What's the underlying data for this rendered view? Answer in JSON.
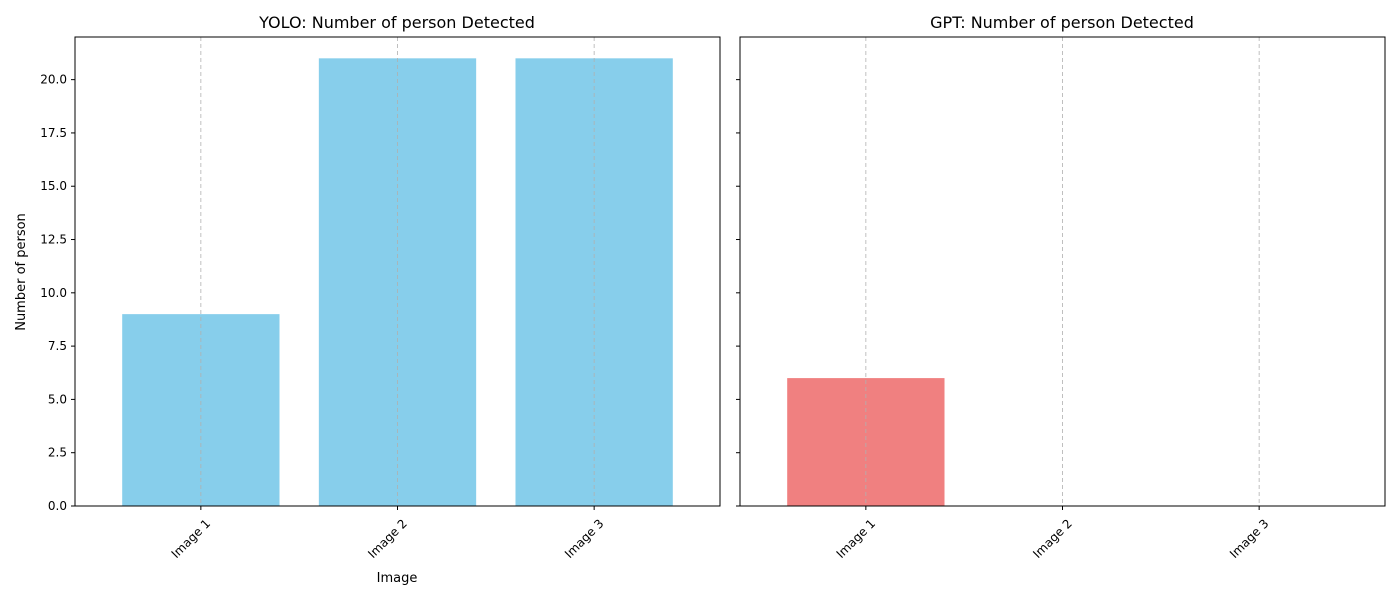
{
  "chart_data": [
    {
      "type": "bar",
      "title": "YOLO: Number of person Detected",
      "xlabel": "Image",
      "ylabel": "Number of person",
      "categories": [
        "Image 1",
        "Image 2",
        "Image 3"
      ],
      "values": [
        9,
        21,
        21
      ],
      "ylim": [
        0,
        22
      ],
      "yticks": [
        "0.0",
        "2.5",
        "5.0",
        "7.5",
        "10.0",
        "12.5",
        "15.0",
        "17.5",
        "20.0"
      ],
      "bar_color": "#87ceeb",
      "grid": "x-dashed",
      "show_ytick_labels": true,
      "xtick_rotation": 45
    },
    {
      "type": "bar",
      "title": "GPT: Number of person Detected",
      "xlabel": "",
      "ylabel": "",
      "categories": [
        "Image 1",
        "Image 2",
        "Image 3"
      ],
      "values": [
        6,
        0,
        0
      ],
      "ylim": [
        0,
        22
      ],
      "yticks": [
        "0.0",
        "2.5",
        "5.0",
        "7.5",
        "10.0",
        "12.5",
        "15.0",
        "17.5",
        "20.0"
      ],
      "bar_color": "#f08080",
      "grid": "x-dashed",
      "show_ytick_labels": false,
      "xtick_rotation": 45,
      "sharey": true
    }
  ]
}
